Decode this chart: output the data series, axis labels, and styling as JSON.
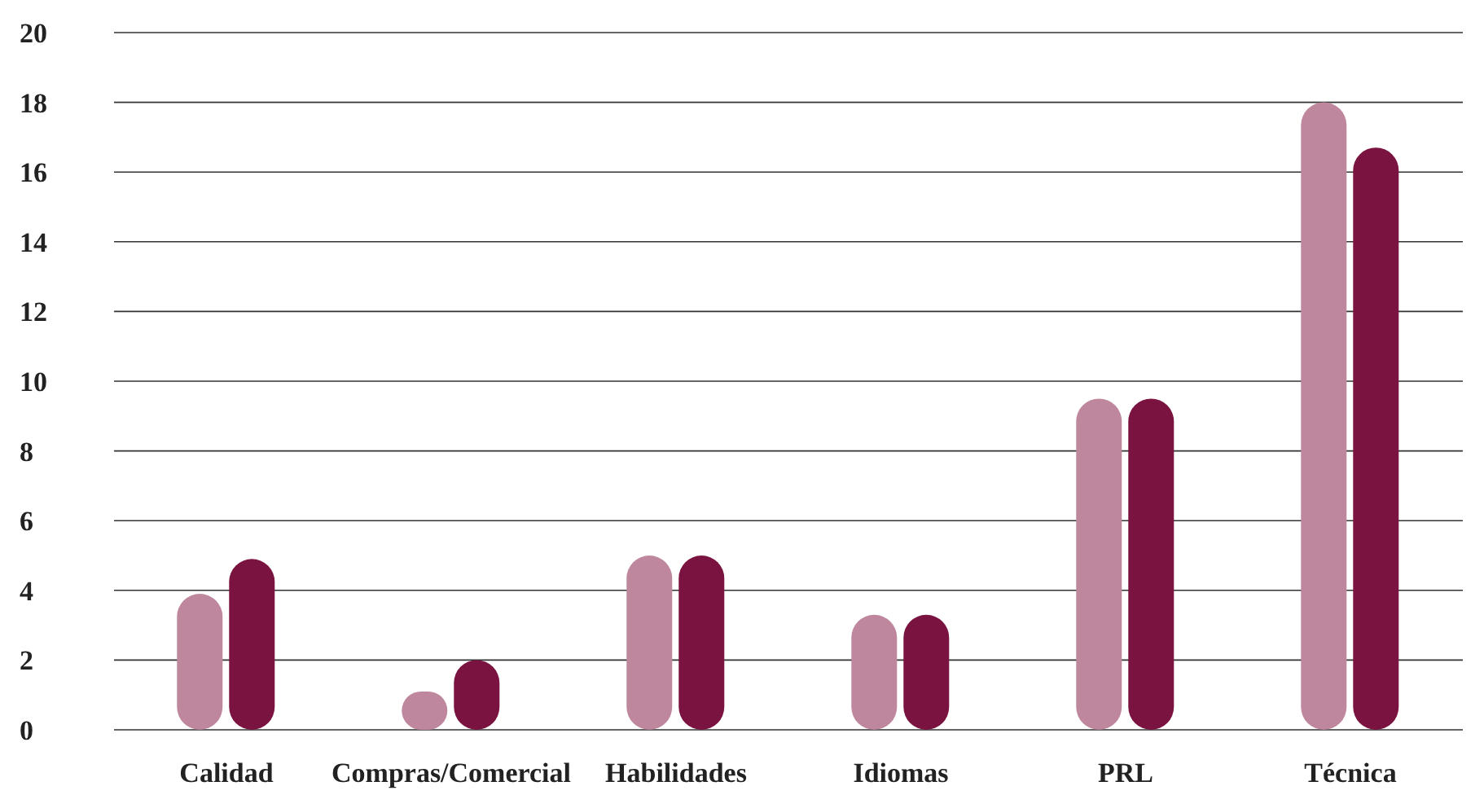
{
  "chart_data": {
    "type": "bar",
    "categories": [
      "Calidad",
      "Compras/Comercial",
      "Habilidades",
      "Idiomas",
      "PRL",
      "Técnica"
    ],
    "series": [
      {
        "color": "#bf879d",
        "values": [
          3.9,
          1.1,
          5,
          3.3,
          9.5,
          18
        ]
      },
      {
        "color": "#7a133f",
        "values": [
          4.9,
          2,
          5,
          3.3,
          9.5,
          16.7
        ]
      }
    ],
    "ylim": [
      0,
      20
    ],
    "yticks": [
      0,
      2,
      4,
      6,
      8,
      10,
      12,
      14,
      16,
      18,
      20
    ],
    "grid": "y",
    "legend": false
  }
}
